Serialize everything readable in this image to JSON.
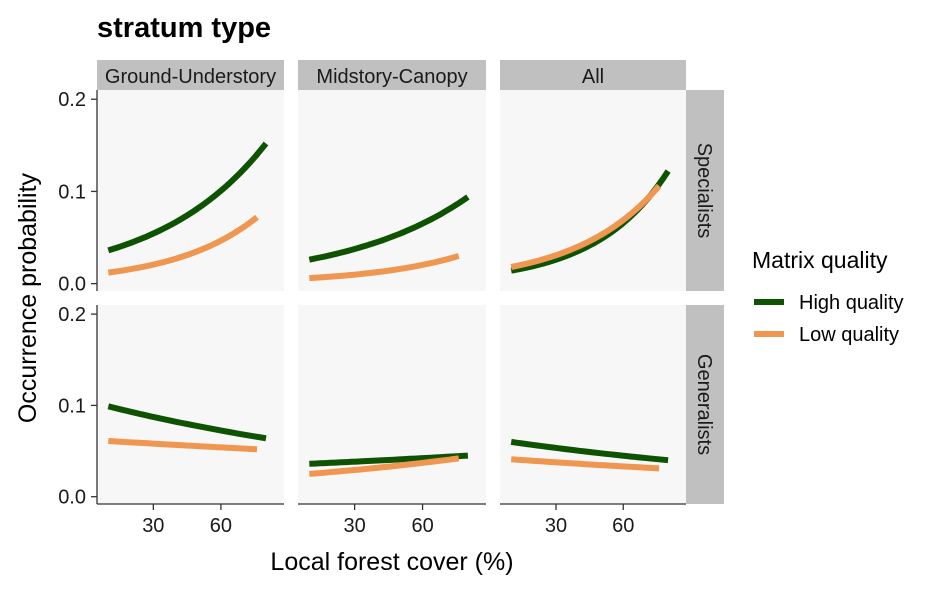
{
  "chart_data": {
    "type": "line",
    "title": "stratum type",
    "xlabel": "Local forest cover (%)",
    "ylabel": "Occurrence probability",
    "xlim": [
      5,
      88
    ],
    "ylim": [
      -0.008,
      0.21
    ],
    "x_ticks": [
      30,
      60
    ],
    "x_tick_labels": [
      "30",
      "60"
    ],
    "y_ticks": [
      0.0,
      0.1,
      0.2
    ],
    "y_tick_labels": [
      "0.0",
      "0.1",
      "0.2"
    ],
    "column_facets": [
      "Ground-Understory",
      "Midstory-Canopy",
      "All"
    ],
    "row_facets": [
      "Specialists",
      "Generalists"
    ],
    "grid": false,
    "legend": {
      "title": "Matrix quality",
      "placement": "right",
      "entries": [
        "High quality",
        "Low quality"
      ]
    },
    "colors": {
      "High quality": "#0d5302",
      "Low quality": "#ef9651",
      "panel_background": "#f7f7f7",
      "strip_background": "#c0c0c0"
    },
    "panels": [
      {
        "row": "Specialists",
        "column": "Ground-Understory",
        "series": [
          {
            "name": "High quality",
            "x": [
              10,
              80
            ],
            "y": [
              0.036,
              0.152
            ]
          },
          {
            "name": "Low quality",
            "x": [
              10,
              76
            ],
            "y": [
              0.012,
              0.072
            ]
          }
        ]
      },
      {
        "row": "Specialists",
        "column": "Midstory-Canopy",
        "series": [
          {
            "name": "High quality",
            "x": [
              10,
              80
            ],
            "y": [
              0.026,
              0.094
            ]
          },
          {
            "name": "Low quality",
            "x": [
              10,
              76
            ],
            "y": [
              0.006,
              0.03
            ]
          }
        ]
      },
      {
        "row": "Specialists",
        "column": "All",
        "series": [
          {
            "name": "High quality",
            "x": [
              10,
              80
            ],
            "y": [
              0.014,
              0.122
            ]
          },
          {
            "name": "Low quality",
            "x": [
              10,
              76
            ],
            "y": [
              0.018,
              0.106
            ]
          }
        ]
      },
      {
        "row": "Generalists",
        "column": "Ground-Understory",
        "series": [
          {
            "name": "High quality",
            "x": [
              10,
              80
            ],
            "y": [
              0.099,
              0.064
            ]
          },
          {
            "name": "Low quality",
            "x": [
              10,
              76
            ],
            "y": [
              0.061,
              0.052
            ]
          }
        ]
      },
      {
        "row": "Generalists",
        "column": "Midstory-Canopy",
        "series": [
          {
            "name": "High quality",
            "x": [
              10,
              80
            ],
            "y": [
              0.036,
              0.045
            ]
          },
          {
            "name": "Low quality",
            "x": [
              10,
              76
            ],
            "y": [
              0.025,
              0.042
            ]
          }
        ]
      },
      {
        "row": "Generalists",
        "column": "All",
        "series": [
          {
            "name": "High quality",
            "x": [
              10,
              80
            ],
            "y": [
              0.06,
              0.04
            ]
          },
          {
            "name": "Low quality",
            "x": [
              10,
              76
            ],
            "y": [
              0.041,
              0.031
            ]
          }
        ]
      }
    ]
  }
}
